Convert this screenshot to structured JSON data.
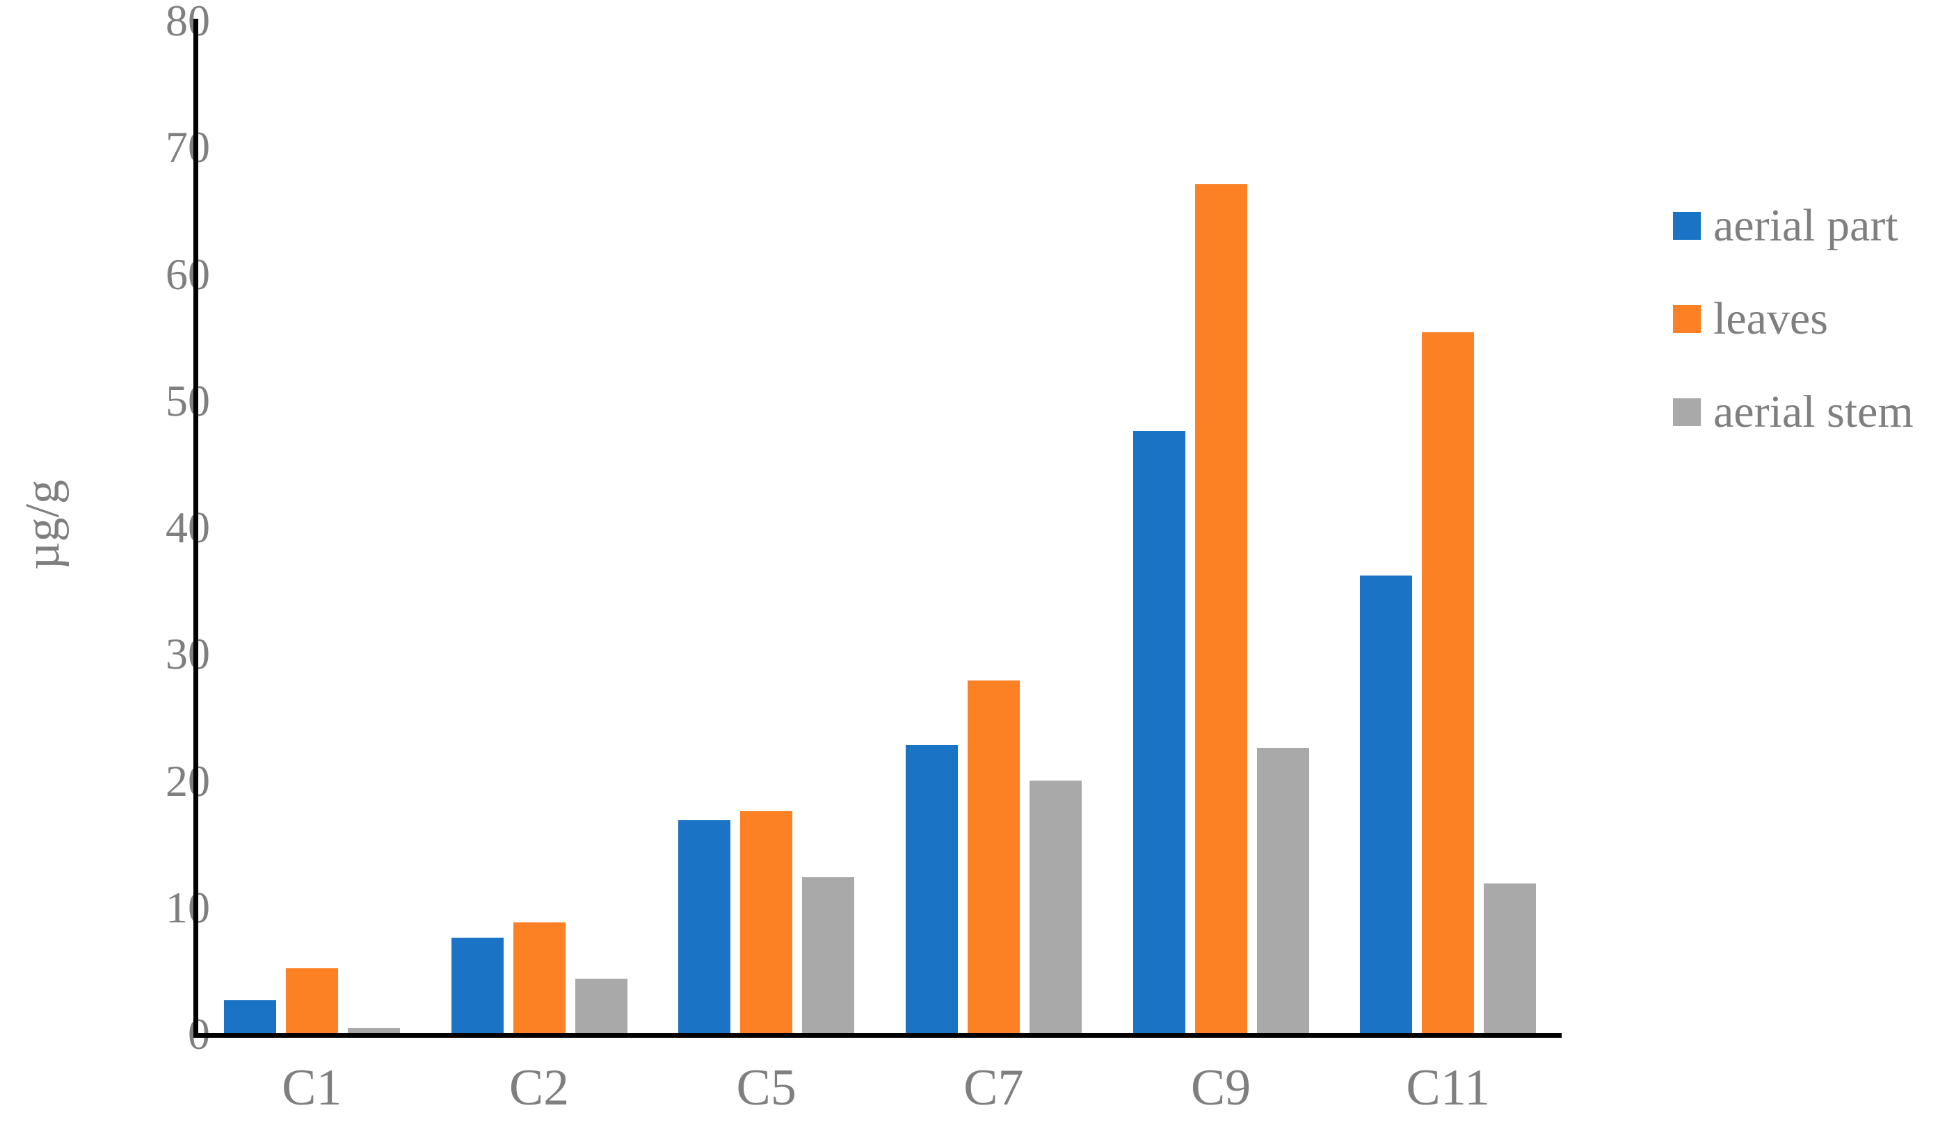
{
  "chart_data": {
    "type": "bar",
    "ylabel": "µg/g",
    "categories": [
      "C1",
      "C2",
      "C5",
      "C7",
      "C9",
      "C11"
    ],
    "series": [
      {
        "name": "aerial part",
        "color": "#1a73c4",
        "values": [
          2.6,
          7.5,
          16.8,
          22.7,
          47.5,
          36.1
        ]
      },
      {
        "name": "leaves",
        "color": "#fc8024",
        "values": [
          5.1,
          8.7,
          17.5,
          27.8,
          67.0,
          55.3
        ]
      },
      {
        "name": "aerial stem",
        "color": "#a9a9a9",
        "values": [
          0.4,
          4.3,
          12.3,
          19.9,
          22.5,
          11.8
        ]
      }
    ],
    "ylim": [
      0,
      80
    ],
    "yticks": [
      0,
      10,
      20,
      30,
      40,
      50,
      60,
      70,
      80
    ],
    "grid": false,
    "legend_position": "right",
    "axis_color": "#000000",
    "label_color": "#7f7f7f"
  }
}
